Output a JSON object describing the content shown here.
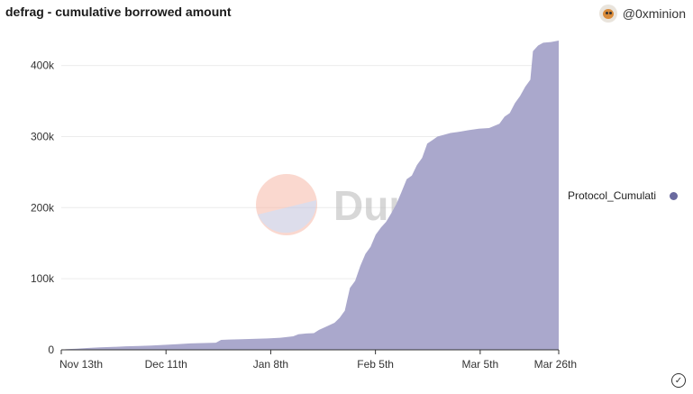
{
  "header": {
    "title": "defrag - cumulative borrowed amount",
    "author": "@0xminion"
  },
  "watermark": {
    "text": "Dune"
  },
  "legend": {
    "label": "Protocol_Cumulati"
  },
  "colors": {
    "area": "#aaa8cc",
    "legend_dot": "#6a6a9f"
  },
  "chart_data": {
    "type": "area",
    "x_ticks": [
      "Nov 13th",
      "Dec 11th",
      "Jan 8th",
      "Feb 5th",
      "Mar 5th",
      "Mar 26th"
    ],
    "y_ticks": [
      "0",
      "100k",
      "200k",
      "300k",
      "400k"
    ],
    "ylim": [
      0,
      435000
    ],
    "grid": true,
    "legend_position": "right",
    "series": [
      {
        "values": [
          [
            0,
            0
          ],
          [
            2,
            1000
          ],
          [
            6,
            1500
          ],
          [
            10,
            2500
          ],
          [
            15,
            3500
          ],
          [
            20,
            4000
          ],
          [
            25,
            5000
          ],
          [
            30,
            5500
          ],
          [
            35,
            6000
          ],
          [
            40,
            7000
          ],
          [
            45,
            8000
          ],
          [
            50,
            9000
          ],
          [
            55,
            9500
          ],
          [
            60,
            10000
          ],
          [
            62,
            14000
          ],
          [
            65,
            14500
          ],
          [
            70,
            15000
          ],
          [
            80,
            16000
          ],
          [
            85,
            17000
          ],
          [
            90,
            19000
          ],
          [
            92,
            22000
          ],
          [
            95,
            23000
          ],
          [
            98,
            23500
          ],
          [
            100,
            28000
          ],
          [
            103,
            33000
          ],
          [
            106,
            38000
          ],
          [
            108,
            45000
          ],
          [
            110,
            55000
          ],
          [
            112,
            87000
          ],
          [
            114,
            97000
          ],
          [
            116,
            118000
          ],
          [
            118,
            135000
          ],
          [
            120,
            145000
          ],
          [
            122,
            162000
          ],
          [
            124,
            172000
          ],
          [
            126,
            180000
          ],
          [
            128,
            192000
          ],
          [
            130,
            205000
          ],
          [
            132,
            222000
          ],
          [
            134,
            240000
          ],
          [
            136,
            245000
          ],
          [
            138,
            260000
          ],
          [
            140,
            270000
          ],
          [
            142,
            290000
          ],
          [
            144,
            295000
          ],
          [
            146,
            300000
          ],
          [
            148,
            302000
          ],
          [
            151,
            305000
          ],
          [
            155,
            307000
          ],
          [
            158,
            309000
          ],
          [
            162,
            311000
          ],
          [
            166,
            312000
          ],
          [
            170,
            318000
          ],
          [
            172,
            328000
          ],
          [
            174,
            333000
          ],
          [
            176,
            347000
          ],
          [
            178,
            357000
          ],
          [
            180,
            370000
          ],
          [
            182,
            380000
          ],
          [
            183,
            420000
          ],
          [
            185,
            428000
          ],
          [
            187,
            432000
          ],
          [
            190,
            433000
          ],
          [
            193,
            435000
          ]
        ]
      }
    ]
  }
}
